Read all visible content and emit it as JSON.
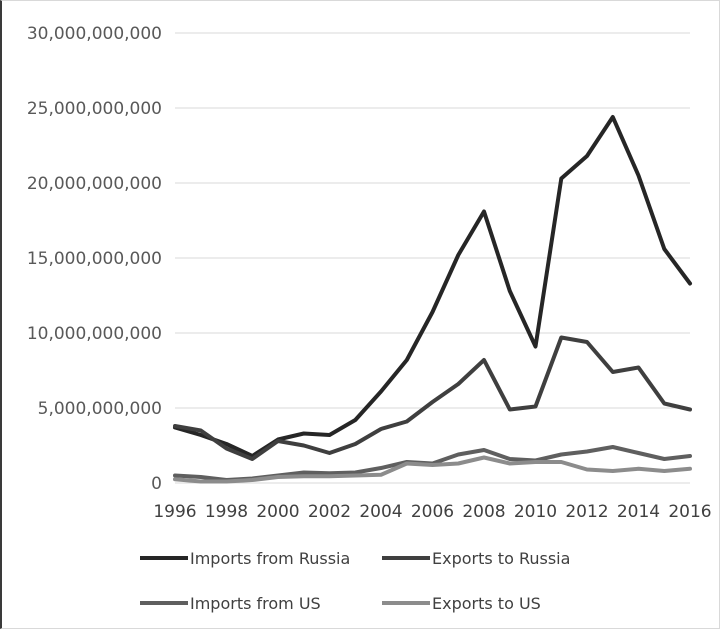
{
  "chart_data": {
    "type": "line",
    "title": "",
    "xlabel": "",
    "ylabel": "",
    "ylim": [
      0,
      30000000000
    ],
    "y_ticks": [
      "0",
      "5,000,000,000",
      "10,000,000,000",
      "15,000,000,000",
      "20,000,000,000",
      "25,000,000,000",
      "30,000,000,000"
    ],
    "x_ticks": [
      "1996",
      "1998",
      "2000",
      "2002",
      "2004",
      "2006",
      "2008",
      "2010",
      "2012",
      "2014",
      "2016"
    ],
    "x": [
      1996,
      1997,
      1998,
      1999,
      2000,
      2001,
      2002,
      2003,
      2004,
      2005,
      2006,
      2007,
      2008,
      2009,
      2010,
      2011,
      2012,
      2013,
      2014,
      2015,
      2016
    ],
    "grid": true,
    "legend_position": "bottom",
    "series": [
      {
        "name": "Imports from Russia",
        "color": "#262626",
        "values": [
          3700000000,
          3200000000,
          2600000000,
          1800000000,
          2900000000,
          3300000000,
          3200000000,
          4200000000,
          6100000000,
          8200000000,
          11400000000,
          15200000000,
          18100000000,
          12800000000,
          9100000000,
          20300000000,
          21800000000,
          24400000000,
          20500000000,
          15600000000,
          13300000000
        ]
      },
      {
        "name": "Exports to Russia",
        "color": "#3f3f3f",
        "values": [
          3800000000,
          3500000000,
          2300000000,
          1600000000,
          2800000000,
          2500000000,
          2000000000,
          2600000000,
          3600000000,
          4100000000,
          5400000000,
          6600000000,
          8200000000,
          4900000000,
          5100000000,
          9700000000,
          9400000000,
          7400000000,
          7700000000,
          5300000000,
          4900000000
        ]
      },
      {
        "name": "Imports from US",
        "color": "#5f5f5f",
        "values": [
          500000000,
          400000000,
          200000000,
          300000000,
          500000000,
          700000000,
          650000000,
          700000000,
          1000000000,
          1400000000,
          1300000000,
          1900000000,
          2200000000,
          1600000000,
          1500000000,
          1900000000,
          2100000000,
          2400000000,
          2000000000,
          1600000000,
          1800000000
        ]
      },
      {
        "name": "Exports to US",
        "color": "#8c8c8c",
        "values": [
          250000000,
          100000000,
          100000000,
          200000000,
          400000000,
          450000000,
          450000000,
          500000000,
          550000000,
          1300000000,
          1200000000,
          1300000000,
          1700000000,
          1300000000,
          1400000000,
          1400000000,
          900000000,
          800000000,
          950000000,
          800000000,
          950000000
        ]
      }
    ]
  }
}
